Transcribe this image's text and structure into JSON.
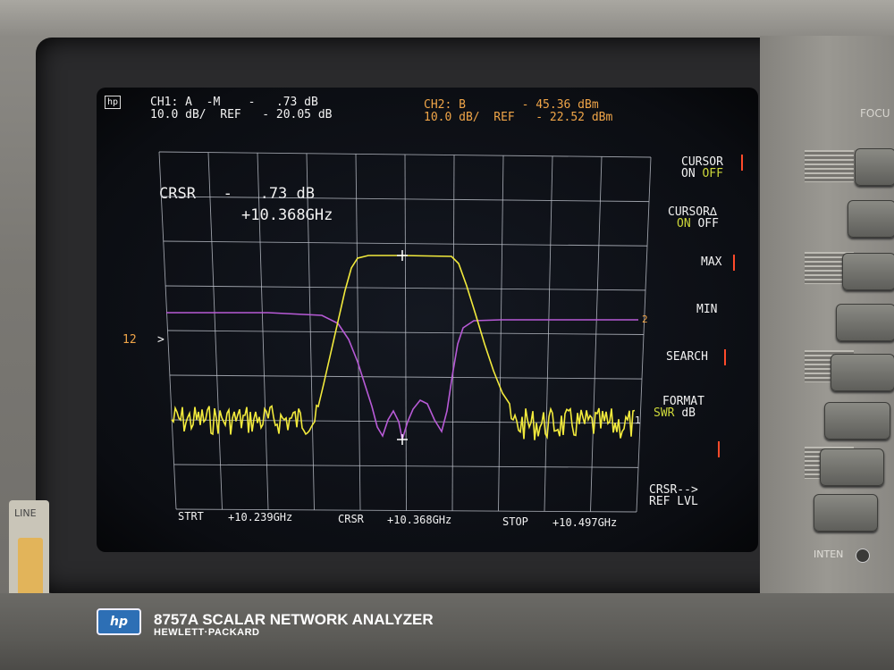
{
  "panel": {
    "focus_label": "FOCU",
    "inten_label": "INTEN",
    "line_label": "LINE",
    "brand_logo": "hp",
    "model": "8757A SCALAR NETWORK ANALYZER",
    "maker": "HEWLETT·PACKARD"
  },
  "screen": {
    "hp_mark": "hp",
    "ch1": {
      "line1": "CH1: A  -M    -   .73 dB",
      "line2": "10.0 dB/  REF   - 20.05 dB"
    },
    "ch2": {
      "line1": "CH2: B        - 45.36 dBm",
      "line2": "10.0 dB/  REF   - 22.52 dBm"
    },
    "cursor_readout": {
      "value": "CRSR   -   .73 dB",
      "freq": "+10.368GHz"
    },
    "ref_marker_left": "12",
    "ref_marker_left_arrow": ">",
    "ref_marker_right_2": "2",
    "ref_marker_right_1": "1",
    "bottom": {
      "start_label": "STRT",
      "start_value": "+10.239GHz",
      "crsr_label": "CRSR",
      "crsr_value": "+10.368GHz",
      "stop_label": "STOP",
      "stop_value": "+10.497GHz"
    },
    "softkeys": [
      {
        "line1": "CURSOR",
        "line2_on": "ON ",
        "line2_off": "OFF"
      },
      {
        "line1": "CURSOR∆",
        "line2_on": "ON ",
        "line2_off": "OFF"
      },
      {
        "line1": "MAX"
      },
      {
        "line1": "MIN"
      },
      {
        "line1": "SEARCH"
      },
      {
        "line1": "FORMAT",
        "line2_on": "SWR ",
        "line2_off": "dB"
      },
      {
        "line1": "CRSR-->",
        "line2": "REF LVL"
      }
    ]
  },
  "colors": {
    "trace_ch1": "#f2ea3c",
    "trace_ch2": "#b75ad6",
    "grid": "#bfc3cc",
    "text_ch1": "#f2f2f2",
    "text_ch2": "#f0a548"
  }
}
